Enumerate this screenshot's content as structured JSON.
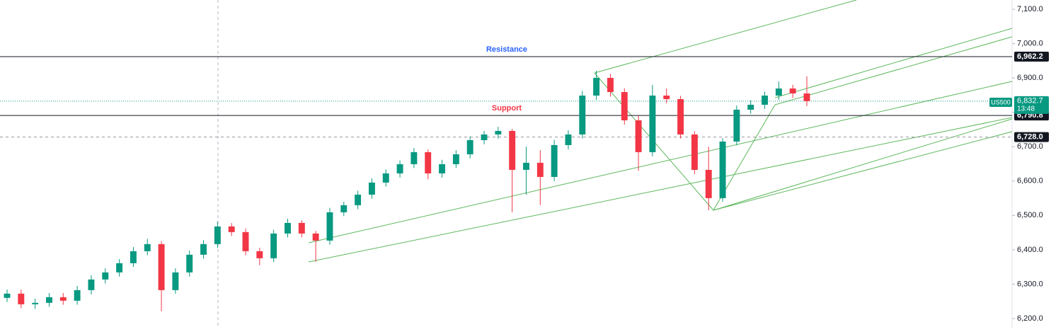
{
  "chart_data": {
    "type": "candlestick",
    "symbol": "US500",
    "countdown": "13:48",
    "ylim": [
      6171,
      7127
    ],
    "yticks": [
      {
        "value": 6200,
        "label": "6,200.0"
      },
      {
        "value": 6300,
        "label": "6,300.0"
      },
      {
        "value": 6400,
        "label": "6,400.0"
      },
      {
        "value": 6500,
        "label": "6,500.0"
      },
      {
        "value": 6600,
        "label": "6,600.0"
      },
      {
        "value": 6700,
        "label": "6,700.0"
      },
      {
        "value": 6800,
        "label": "6,800.0"
      },
      {
        "value": 6900,
        "label": "6,900.0"
      },
      {
        "value": 7000,
        "label": "7,000.0"
      },
      {
        "value": 7100,
        "label": "7,100.0"
      }
    ],
    "up_color": "#089981",
    "down_color": "#f23645",
    "open": [
      6260.0,
      6272.3,
      6241.4,
      6245.5,
      6262.0,
      6251.7,
      6282.6,
      6313.5,
      6334.1,
      6360.9,
      6395.9,
      6416.5,
      6282.6,
      6334.1,
      6385.6,
      6416.5,
      6467.9,
      6451.5,
      6395.9,
      6375.3,
      6447.3,
      6478.2,
      6447.3,
      6426.7,
      6509.1,
      6529.7,
      6560.5,
      6595.6,
      6622.3,
      6649.1,
      6684.1,
      6622.3,
      6649.1,
      6677.9,
      6719.1,
      6735.6,
      6745.9,
      6632.6,
      6653.2,
      6612.0,
      6704.7,
      6735.6,
      6848.8,
      6900.3,
      6859.1,
      6776.8,
      6684.1,
      6848.8,
      6838.5,
      6735.6,
      6632.6,
      6550.3,
      6715.0,
      6807.7,
      6822.1,
      6848.8,
      6869.4,
      6855.0
    ],
    "high": [
      6284,
      6284,
      6258,
      6274,
      6274,
      6295,
      6326,
      6346,
      6373,
      6408,
      6432,
      6425,
      6346,
      6398,
      6428,
      6482,
      6478,
      6462,
      6406,
      6458,
      6490,
      6486,
      6455,
      6522,
      6540,
      6572,
      6608,
      6634,
      6660,
      6696,
      6692,
      6662,
      6690,
      6730,
      6746,
      6758,
      6752,
      6700,
      6690,
      6720,
      6748,
      6862,
      6921,
      6912,
      6870,
      6790,
      6880,
      6870,
      6848,
      6745,
      6700,
      6725,
      6820,
      6835,
      6860,
      6890,
      6880,
      6905
    ],
    "low": [
      6248,
      6230,
      6228,
      6234,
      6240,
      6240,
      6270,
      6302,
      6322,
      6350,
      6384,
      6221,
      6272,
      6322,
      6374,
      6405,
      6440,
      6384,
      6355,
      6364,
      6436,
      6436,
      6365,
      6415,
      6498,
      6518,
      6549,
      6584,
      6610,
      6638,
      6605,
      6610,
      6638,
      6666,
      6707,
      6724,
      6509,
      6560,
      6530,
      6600,
      6692,
      6724,
      6836,
      6846,
      6764,
      6630,
      6672,
      6826,
      6724,
      6620,
      6515,
      6540,
      6704,
      6796,
      6810,
      6836,
      6842,
      6818
    ],
    "close": [
      6272.3,
      6241.4,
      6245.5,
      6262.0,
      6251.7,
      6282.6,
      6313.5,
      6334.1,
      6360.9,
      6395.9,
      6416.5,
      6282.6,
      6334.1,
      6385.6,
      6416.5,
      6467.9,
      6451.5,
      6395.9,
      6375.3,
      6447.3,
      6478.2,
      6447.3,
      6426.7,
      6509.1,
      6529.7,
      6560.5,
      6595.6,
      6622.3,
      6649.1,
      6684.1,
      6622.3,
      6649.1,
      6677.9,
      6719.1,
      6735.6,
      6745.9,
      6632.6,
      6653.2,
      6612.0,
      6704.7,
      6735.6,
      6848.8,
      6900.3,
      6859.1,
      6776.8,
      6684.1,
      6848.8,
      6838.5,
      6735.6,
      6632.6,
      6550.3,
      6715.0,
      6807.7,
      6822.1,
      6848.8,
      6869.4,
      6855.0,
      6832.7
    ],
    "levels": [
      {
        "name": "Resistance",
        "value": 6962.2,
        "label": "6,962.2",
        "color": "#2962ff",
        "style": "solid"
      },
      {
        "name": "Support",
        "value": 6790.8,
        "label": "6,790.8",
        "color": "#f23645",
        "style": "solid"
      },
      {
        "value": 6728.0,
        "label": "6,728.0",
        "style": "dashed"
      }
    ],
    "last_price": {
      "value": 6832.7,
      "label": "6,832.7",
      "color": "#089981"
    }
  }
}
